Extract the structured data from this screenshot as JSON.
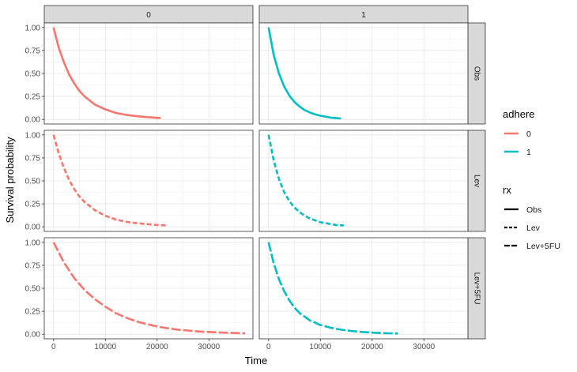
{
  "chart_data": {
    "type": "line",
    "xlabel": "Time",
    "ylabel": "Survival probability",
    "xlim": [
      -1800,
      38500
    ],
    "ylim": [
      -0.05,
      1.05
    ],
    "x_ticks": [
      0,
      10000,
      20000,
      30000
    ],
    "x_tick_labels": [
      "0",
      "10000",
      "20000",
      "30000"
    ],
    "y_ticks": [
      0,
      0.25,
      0.5,
      0.75,
      1
    ],
    "y_tick_labels": [
      "0.00",
      "0.25",
      "0.50",
      "0.75",
      "1.00"
    ],
    "grid": true,
    "column_facets": [
      "0",
      "1"
    ],
    "row_facets": [
      "Obs",
      "Lev",
      "Lev+5FU"
    ],
    "legend": {
      "placement": "right",
      "color": {
        "title": "adhere",
        "items": [
          {
            "label": "0",
            "color": "#F8766D"
          },
          {
            "label": "1",
            "color": "#00BFC4"
          }
        ]
      },
      "linetype": {
        "title": "rx",
        "items": [
          {
            "label": "Obs",
            "dash": "solid"
          },
          {
            "label": "Lev",
            "dash": "dashed"
          },
          {
            "label": "Lev+5FU",
            "dash": "longdash"
          }
        ]
      }
    },
    "series": [
      {
        "rx": "Obs",
        "adhere": "0",
        "x": [
          0,
          1000,
          2000,
          3000,
          4000,
          5000,
          6000,
          8000,
          10000,
          12000,
          14000,
          16000,
          18000,
          20700
        ],
        "y": [
          1.0,
          0.78,
          0.62,
          0.49,
          0.39,
          0.31,
          0.25,
          0.16,
          0.11,
          0.07,
          0.05,
          0.035,
          0.025,
          0.015
        ]
      },
      {
        "rx": "Obs",
        "adhere": "1",
        "x": [
          0,
          1000,
          2000,
          3000,
          4000,
          5000,
          6000,
          7000,
          8000,
          9000,
          10000,
          11000,
          12000,
          14000
        ],
        "y": [
          1.0,
          0.7,
          0.5,
          0.36,
          0.26,
          0.19,
          0.14,
          0.1,
          0.075,
          0.055,
          0.04,
          0.03,
          0.02,
          0.01
        ]
      },
      {
        "rx": "Lev",
        "adhere": "0",
        "x": [
          0,
          1000,
          2000,
          3000,
          4000,
          5000,
          6000,
          8000,
          10000,
          12000,
          14000,
          16000,
          18000,
          20000,
          22000
        ],
        "y": [
          1.0,
          0.8,
          0.64,
          0.51,
          0.41,
          0.33,
          0.27,
          0.18,
          0.12,
          0.08,
          0.055,
          0.04,
          0.03,
          0.02,
          0.015
        ]
      },
      {
        "rx": "Lev",
        "adhere": "1",
        "x": [
          0,
          1000,
          2000,
          3000,
          4000,
          5000,
          6000,
          7000,
          8000,
          9000,
          10000,
          11000,
          12000,
          13000,
          14500
        ],
        "y": [
          1.0,
          0.72,
          0.52,
          0.38,
          0.28,
          0.21,
          0.16,
          0.12,
          0.09,
          0.07,
          0.05,
          0.04,
          0.03,
          0.02,
          0.015
        ]
      },
      {
        "rx": "Lev+5FU",
        "adhere": "0",
        "x": [
          0,
          2000,
          4000,
          6000,
          8000,
          10000,
          12000,
          14000,
          16000,
          18000,
          20000,
          22000,
          24000,
          26000,
          28000,
          30000,
          32000,
          34000,
          37000
        ],
        "y": [
          1.0,
          0.78,
          0.61,
          0.48,
          0.38,
          0.3,
          0.23,
          0.18,
          0.14,
          0.11,
          0.085,
          0.065,
          0.05,
          0.04,
          0.03,
          0.025,
          0.02,
          0.015,
          0.01
        ]
      },
      {
        "rx": "Lev+5FU",
        "adhere": "1",
        "x": [
          0,
          1000,
          2000,
          3000,
          4000,
          5000,
          6000,
          8000,
          10000,
          12000,
          14000,
          16000,
          18000,
          20000,
          22000,
          25000
        ],
        "y": [
          1.0,
          0.77,
          0.6,
          0.47,
          0.37,
          0.29,
          0.23,
          0.15,
          0.1,
          0.07,
          0.05,
          0.035,
          0.025,
          0.018,
          0.012,
          0.008
        ]
      }
    ]
  }
}
